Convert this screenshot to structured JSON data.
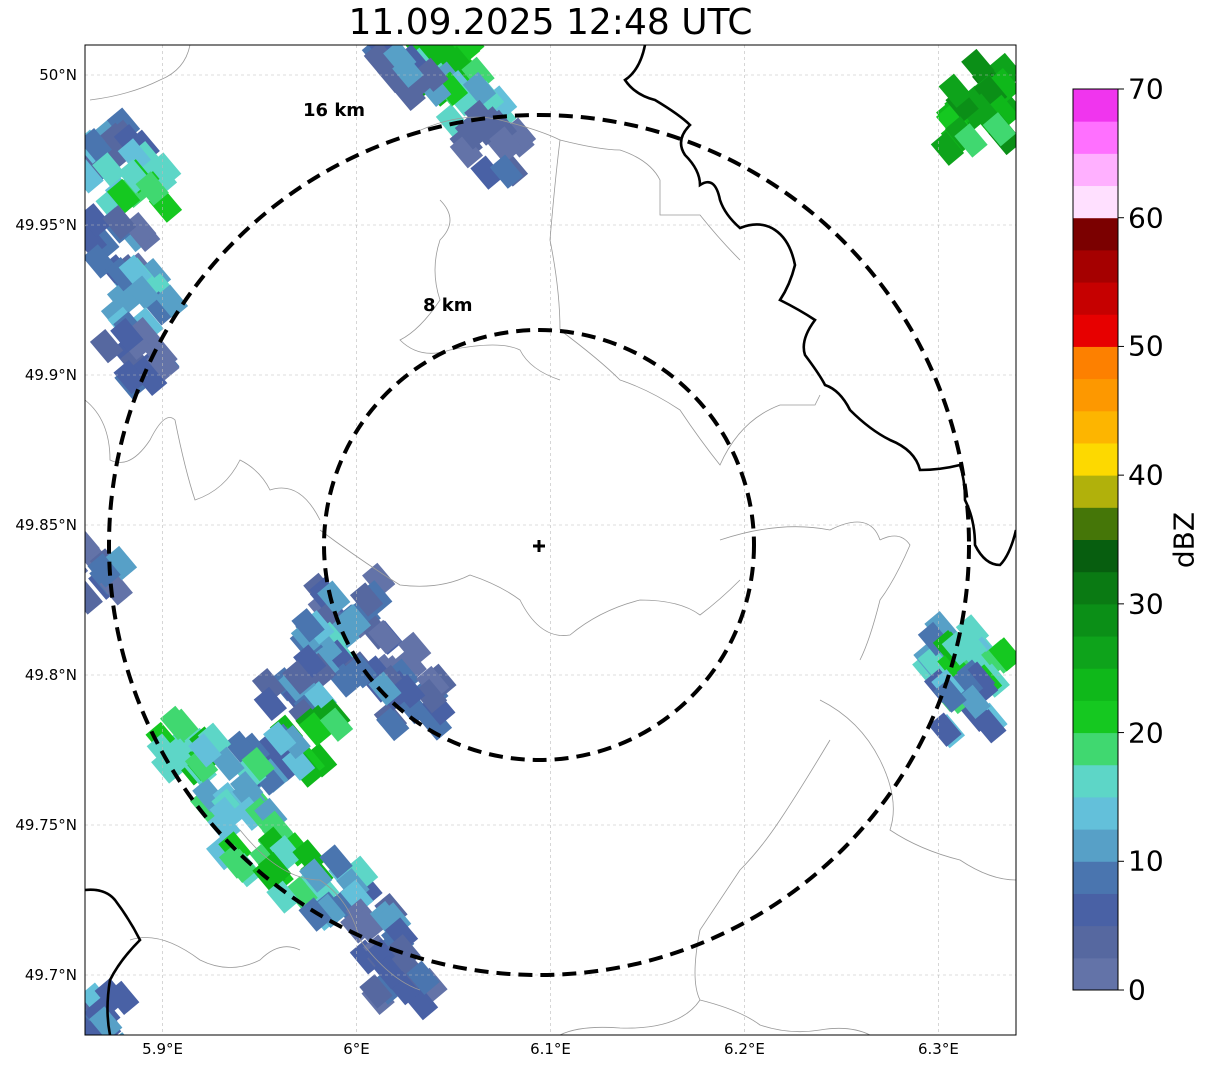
{
  "title": "11.09.2025 12:48 UTC",
  "map": {
    "lon_range": [
      5.86,
      6.34
    ],
    "lat_range": [
      49.68,
      50.01
    ],
    "radar_center": {
      "lon": 6.095,
      "lat": 49.843
    },
    "gridlines": true,
    "lat_ticks": [
      {
        "value": 50.0,
        "label": "50°N"
      },
      {
        "value": 49.95,
        "label": "49.95°N"
      },
      {
        "value": 49.9,
        "label": "49.9°N"
      },
      {
        "value": 49.85,
        "label": "49.85°N"
      },
      {
        "value": 49.8,
        "label": "49.8°N"
      },
      {
        "value": 49.75,
        "label": "49.75°N"
      },
      {
        "value": 49.7,
        "label": "49.7°N"
      }
    ],
    "lon_ticks": [
      {
        "value": 5.9,
        "label": "5.9°E"
      },
      {
        "value": 6.0,
        "label": "6°E"
      },
      {
        "value": 6.1,
        "label": "6.1°E"
      },
      {
        "value": 6.2,
        "label": "6.2°E"
      },
      {
        "value": 6.3,
        "label": "6.3°E"
      }
    ],
    "range_rings": [
      {
        "radius_km": 8,
        "label": "8 km"
      },
      {
        "radius_km": 16,
        "label": "16 km"
      }
    ],
    "echo_cells": [
      {
        "lon": 5.875,
        "lat": 49.975,
        "dbz": 8
      },
      {
        "lon": 5.887,
        "lat": 49.965,
        "dbz": 18
      },
      {
        "lon": 5.878,
        "lat": 49.942,
        "dbz": 6
      },
      {
        "lon": 5.892,
        "lat": 49.925,
        "dbz": 12
      },
      {
        "lon": 5.885,
        "lat": 49.907,
        "dbz": 5
      },
      {
        "lon": 6.045,
        "lat": 50.003,
        "dbz": 22
      },
      {
        "lon": 6.06,
        "lat": 49.993,
        "dbz": 16
      },
      {
        "lon": 6.072,
        "lat": 49.977,
        "dbz": 4
      },
      {
        "lon": 6.025,
        "lat": 50.002,
        "dbz": 8
      },
      {
        "lon": 6.327,
        "lat": 49.993,
        "dbz": 28
      },
      {
        "lon": 6.32,
        "lat": 49.985,
        "dbz": 24
      },
      {
        "lon": 5.996,
        "lat": 49.822,
        "dbz": 6
      },
      {
        "lon": 5.985,
        "lat": 49.808,
        "dbz": 12
      },
      {
        "lon": 6.015,
        "lat": 49.804,
        "dbz": 5
      },
      {
        "lon": 6.03,
        "lat": 49.79,
        "dbz": 6
      },
      {
        "lon": 5.968,
        "lat": 49.795,
        "dbz": 8
      },
      {
        "lon": 5.975,
        "lat": 49.777,
        "dbz": 22
      },
      {
        "lon": 5.955,
        "lat": 49.77,
        "dbz": 10
      },
      {
        "lon": 5.915,
        "lat": 49.777,
        "dbz": 20
      },
      {
        "lon": 5.935,
        "lat": 49.765,
        "dbz": 14
      },
      {
        "lon": 5.945,
        "lat": 49.744,
        "dbz": 16
      },
      {
        "lon": 5.97,
        "lat": 49.735,
        "dbz": 20
      },
      {
        "lon": 5.99,
        "lat": 49.728,
        "dbz": 12
      },
      {
        "lon": 6.015,
        "lat": 49.713,
        "dbz": 6
      },
      {
        "lon": 6.025,
        "lat": 49.7,
        "dbz": 4
      },
      {
        "lon": 6.31,
        "lat": 49.808,
        "dbz": 14
      },
      {
        "lon": 6.32,
        "lat": 49.8,
        "dbz": 20
      },
      {
        "lon": 6.312,
        "lat": 49.79,
        "dbz": 10
      },
      {
        "lon": 5.865,
        "lat": 49.835,
        "dbz": 6
      },
      {
        "lon": 5.87,
        "lat": 49.685,
        "dbz": 8
      }
    ]
  },
  "colorbar": {
    "label": "dBZ",
    "min": 0,
    "max": 70,
    "ticks": [
      "0",
      "10",
      "20",
      "30",
      "40",
      "50",
      "60",
      "70"
    ],
    "bins": [
      "#6373a8",
      "#5668a0",
      "#4961a5",
      "#4a75af",
      "#57a0c7",
      "#63c0da",
      "#5dd6c7",
      "#40d870",
      "#15c820",
      "#0fb81a",
      "#0ea31b",
      "#0b8f17",
      "#0a7a13",
      "#075e0f",
      "#457608",
      "#b1b10b",
      "#fdd900",
      "#fdb500",
      "#fd9800",
      "#fd8000",
      "#e70000",
      "#c60000",
      "#a50000",
      "#7b0000",
      "#ffe0ff",
      "#ffb0ff",
      "#ff70ff",
      "#f035ee"
    ]
  },
  "colors": {
    "border_thin": "#999999",
    "border_thick": "#000000",
    "ring": "#000000",
    "grid": "#bbbbbb"
  }
}
